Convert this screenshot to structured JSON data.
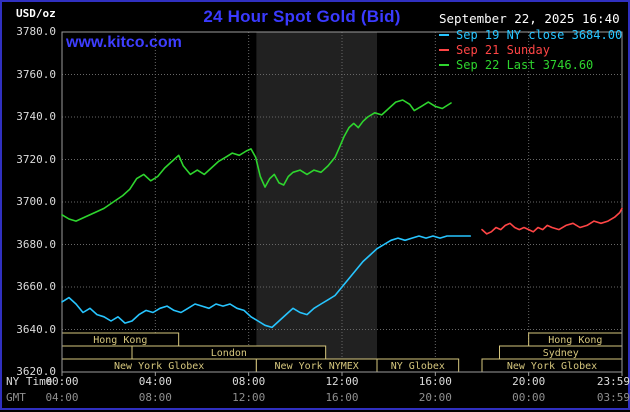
{
  "header": {
    "usd_oz": "USD/oz",
    "title": "24 Hour Spot Gold (Bid)",
    "date": "September 22, 2025 16:40",
    "watermark": "www.kitco.com"
  },
  "legend": {
    "items": [
      {
        "label": "Sep 19 NY close 3684.00",
        "color": "#27c5ff"
      },
      {
        "label": "Sep 21 Sunday",
        "color": "#ff4545"
      },
      {
        "label": "Sep 22 Last 3746.60",
        "color": "#2ed52e"
      }
    ]
  },
  "axes": {
    "ny_time_label": "NY Time",
    "gmt_label": "GMT",
    "tick_hours": [
      0,
      4,
      8,
      12,
      16,
      20,
      24
    ],
    "ny_ticks": [
      "00:00",
      "04:00",
      "08:00",
      "12:00",
      "16:00",
      "20:00",
      "23:59"
    ],
    "gmt_ticks": [
      "04:00",
      "08:00",
      "12:00",
      "16:00",
      "20:00",
      "00:00",
      "03:59"
    ]
  },
  "chart_data": {
    "type": "line",
    "title": "24 Hour Spot Gold (Bid)",
    "ylabel": "USD/oz",
    "ylim": [
      3620,
      3780
    ],
    "yticks": [
      3780,
      3760,
      3740,
      3720,
      3700,
      3680,
      3660,
      3640,
      3620
    ],
    "x_hours_range": [
      0,
      24
    ],
    "grid": "dotted",
    "legend_position": "top-right",
    "nymex_band_hours": [
      8.33,
      13.5
    ],
    "colors": {
      "background": "#000000",
      "band": "#212121",
      "grid": "#686868",
      "plot_border": "#9c9c9c",
      "session": "#d6c77e",
      "title_blue": "#3a3aff",
      "text_white": "#dcdcdc",
      "text_gray": "#8f8f8f"
    },
    "sessions": [
      {
        "label": "Hong Kong",
        "row": 0,
        "start": 0,
        "end": 5
      },
      {
        "label": "Hong Kong",
        "row": 0,
        "start": 20,
        "end": 24
      },
      {
        "label": "London",
        "row": 1,
        "start": 3,
        "end": 11.3
      },
      {
        "label": "Sydney",
        "row": 1,
        "start": 18.75,
        "end": 24
      },
      {
        "label": "New York Globex",
        "row": 2,
        "start": 0,
        "end": 8.33
      },
      {
        "label": "New York NYMEX",
        "row": 2,
        "start": 8.33,
        "end": 13.5
      },
      {
        "label": "NY Globex",
        "row": 2,
        "start": 13.5,
        "end": 17
      },
      {
        "label": "New York Globex",
        "row": 2,
        "start": 18,
        "end": 24
      }
    ],
    "series": [
      {
        "id": "sep19",
        "name": "Sep 19 NY close",
        "close": 3684.0,
        "color": "#27c5ff",
        "points": [
          [
            0,
            3653
          ],
          [
            0.3,
            3655
          ],
          [
            0.6,
            3652
          ],
          [
            0.9,
            3648
          ],
          [
            1.2,
            3650
          ],
          [
            1.5,
            3647
          ],
          [
            1.8,
            3646
          ],
          [
            2.1,
            3644
          ],
          [
            2.4,
            3646
          ],
          [
            2.7,
            3643
          ],
          [
            3.0,
            3644
          ],
          [
            3.3,
            3647
          ],
          [
            3.6,
            3649
          ],
          [
            3.9,
            3648
          ],
          [
            4.2,
            3650
          ],
          [
            4.5,
            3651
          ],
          [
            4.8,
            3649
          ],
          [
            5.1,
            3648
          ],
          [
            5.4,
            3650
          ],
          [
            5.7,
            3652
          ],
          [
            6.0,
            3651
          ],
          [
            6.3,
            3650
          ],
          [
            6.6,
            3652
          ],
          [
            6.9,
            3651
          ],
          [
            7.2,
            3652
          ],
          [
            7.5,
            3650
          ],
          [
            7.8,
            3649
          ],
          [
            8.1,
            3646
          ],
          [
            8.4,
            3644
          ],
          [
            8.7,
            3642
          ],
          [
            9.0,
            3641
          ],
          [
            9.3,
            3644
          ],
          [
            9.6,
            3647
          ],
          [
            9.9,
            3650
          ],
          [
            10.2,
            3648
          ],
          [
            10.5,
            3647
          ],
          [
            10.8,
            3650
          ],
          [
            11.1,
            3652
          ],
          [
            11.4,
            3654
          ],
          [
            11.7,
            3656
          ],
          [
            12.0,
            3660
          ],
          [
            12.3,
            3664
          ],
          [
            12.6,
            3668
          ],
          [
            12.9,
            3672
          ],
          [
            13.2,
            3675
          ],
          [
            13.5,
            3678
          ],
          [
            13.8,
            3680
          ],
          [
            14.1,
            3682
          ],
          [
            14.4,
            3683
          ],
          [
            14.7,
            3682
          ],
          [
            15.0,
            3683
          ],
          [
            15.3,
            3684
          ],
          [
            15.6,
            3683
          ],
          [
            15.9,
            3684
          ],
          [
            16.2,
            3683
          ],
          [
            16.5,
            3684
          ],
          [
            17.0,
            3684
          ],
          [
            17.5,
            3684
          ]
        ]
      },
      {
        "id": "sep21",
        "name": "Sep 21 Sunday",
        "color": "#ff4545",
        "points": [
          [
            18.0,
            3687
          ],
          [
            18.2,
            3685
          ],
          [
            18.4,
            3686
          ],
          [
            18.6,
            3688
          ],
          [
            18.8,
            3687
          ],
          [
            19.0,
            3689
          ],
          [
            19.2,
            3690
          ],
          [
            19.4,
            3688
          ],
          [
            19.6,
            3687
          ],
          [
            19.8,
            3688
          ],
          [
            20.0,
            3687
          ],
          [
            20.2,
            3686
          ],
          [
            20.4,
            3688
          ],
          [
            20.6,
            3687
          ],
          [
            20.8,
            3689
          ],
          [
            21.0,
            3688
          ],
          [
            21.3,
            3687
          ],
          [
            21.6,
            3689
          ],
          [
            21.9,
            3690
          ],
          [
            22.2,
            3688
          ],
          [
            22.5,
            3689
          ],
          [
            22.8,
            3691
          ],
          [
            23.1,
            3690
          ],
          [
            23.4,
            3691
          ],
          [
            23.7,
            3693
          ],
          [
            23.9,
            3695
          ],
          [
            24.0,
            3697
          ]
        ]
      },
      {
        "id": "sep22",
        "name": "Sep 22 Last",
        "last": 3746.6,
        "color": "#2ed52e",
        "points": [
          [
            0,
            3694
          ],
          [
            0.3,
            3692
          ],
          [
            0.6,
            3691
          ],
          [
            1.0,
            3693
          ],
          [
            1.4,
            3695
          ],
          [
            1.8,
            3697
          ],
          [
            2.2,
            3700
          ],
          [
            2.6,
            3703
          ],
          [
            2.9,
            3706
          ],
          [
            3.2,
            3711
          ],
          [
            3.5,
            3713
          ],
          [
            3.8,
            3710
          ],
          [
            4.1,
            3712
          ],
          [
            4.4,
            3716
          ],
          [
            4.7,
            3719
          ],
          [
            5.0,
            3722
          ],
          [
            5.2,
            3717
          ],
          [
            5.5,
            3713
          ],
          [
            5.8,
            3715
          ],
          [
            6.1,
            3713
          ],
          [
            6.4,
            3716
          ],
          [
            6.7,
            3719
          ],
          [
            7.0,
            3721
          ],
          [
            7.3,
            3723
          ],
          [
            7.6,
            3722
          ],
          [
            7.9,
            3724
          ],
          [
            8.1,
            3725
          ],
          [
            8.3,
            3721
          ],
          [
            8.5,
            3712
          ],
          [
            8.7,
            3707
          ],
          [
            8.9,
            3711
          ],
          [
            9.1,
            3713
          ],
          [
            9.3,
            3709
          ],
          [
            9.5,
            3708
          ],
          [
            9.7,
            3712
          ],
          [
            9.9,
            3714
          ],
          [
            10.2,
            3715
          ],
          [
            10.5,
            3713
          ],
          [
            10.8,
            3715
          ],
          [
            11.1,
            3714
          ],
          [
            11.4,
            3717
          ],
          [
            11.7,
            3721
          ],
          [
            11.9,
            3726
          ],
          [
            12.1,
            3731
          ],
          [
            12.3,
            3735
          ],
          [
            12.5,
            3737
          ],
          [
            12.7,
            3735
          ],
          [
            12.9,
            3738
          ],
          [
            13.1,
            3740
          ],
          [
            13.4,
            3742
          ],
          [
            13.7,
            3741
          ],
          [
            14.0,
            3744
          ],
          [
            14.3,
            3747
          ],
          [
            14.6,
            3748
          ],
          [
            14.9,
            3746
          ],
          [
            15.1,
            3743
          ],
          [
            15.4,
            3745
          ],
          [
            15.7,
            3747
          ],
          [
            16.0,
            3745
          ],
          [
            16.3,
            3744
          ],
          [
            16.67,
            3746.6
          ]
        ]
      }
    ]
  }
}
